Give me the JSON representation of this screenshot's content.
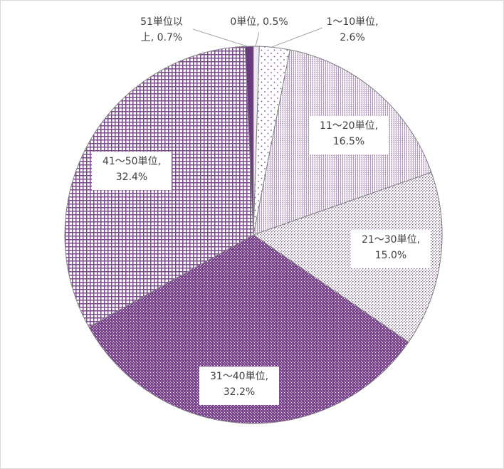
{
  "chart_data": {
    "type": "pie",
    "title": "",
    "slices": [
      {
        "name": "0単位",
        "value": 0.5,
        "label_line1": "0単位, 0.5%",
        "label_line2": "",
        "color": "#f4eef7"
      },
      {
        "name": "1～10単位",
        "value": 2.6,
        "label_line1": "1～10単位,",
        "label_line2": "2.6%",
        "color": "#ffffff"
      },
      {
        "name": "11～20単位",
        "value": 16.5,
        "label_line1": "11～20単位,",
        "label_line2": "16.5%",
        "color": "#ffffff"
      },
      {
        "name": "21～30単位",
        "value": 15.0,
        "label_line1": "21～30単位,",
        "label_line2": "15.0%",
        "color": "#ffffff"
      },
      {
        "name": "31～40単位",
        "value": 32.2,
        "label_line1": "31～40単位,",
        "label_line2": "32.2%",
        "color": "#7a4a8c"
      },
      {
        "name": "41～50単位",
        "value": 32.4,
        "label_line1": "41～50単位,",
        "label_line2": "32.4%",
        "color": "#ffffff"
      },
      {
        "name": "51単位以上",
        "value": 0.7,
        "label_line1": "51単位以",
        "label_line2": "上, 0.7%",
        "color": "#6a3a7e"
      }
    ],
    "colors": {
      "accent": "#7a4a8c",
      "border": "#808080",
      "leader": "#a6a6a6"
    }
  }
}
